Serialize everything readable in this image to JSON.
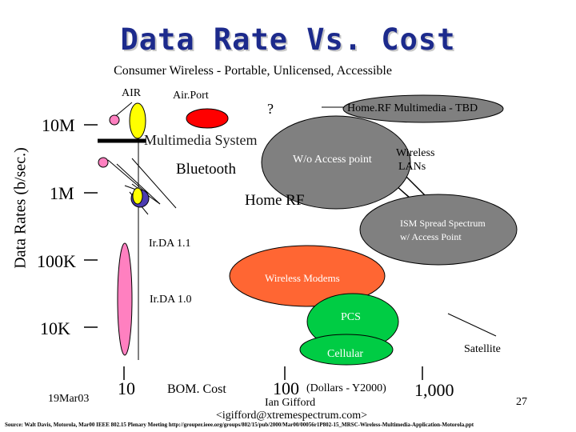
{
  "slide": {
    "title": "Data Rate Vs. Cost",
    "subtitle": "Consumer Wireless - Portable, Unlicensed, Accessible",
    "date": "19Mar03",
    "author": "Ian Gifford",
    "email": "<igifford@xtremespectrum.com>",
    "page_number": "27",
    "source": "Source: Walt Davis, Motorola, Mar00 IEEE 802.15 Plenary Meeting http://grouper.ieee.org/groups/802/15/pub/2000/Mar00/00056r1P802-15_MRSC-Wireless-Multimedia-Application-Motorola.ppt"
  },
  "axes": {
    "y_label": "Data Rates (b/sec.)",
    "y_ticks": [
      "10M",
      "1M",
      "100K",
      "10K"
    ],
    "x_ticks": [
      "10",
      "100",
      "1,000"
    ],
    "x_label": "BOM. Cost",
    "x_unit": "(Dollars - Y2000)"
  },
  "technologies": {
    "air": "AIR",
    "airport": "Air.Port",
    "question": "?",
    "homerf_multimedia": "Home.RF Multimedia - TBD",
    "multimedia_system": "Multimedia System",
    "wo_access_point": "W/o Access point",
    "wireless_lans_1": "Wireless",
    "wireless_lans_2": "LANs",
    "bluetooth": "Bluetooth",
    "home_rf": "Home RF",
    "ism_1": "ISM Spread Spectrum",
    "ism_2": "w/ Access Point",
    "irda_11": "Ir.DA 1.1",
    "wireless_modems": "Wireless Modems",
    "irda_10": "Ir.DA 1.0",
    "pcs": "PCS",
    "satellite": "Satellite",
    "cellular": "Cellular"
  },
  "colors": {
    "title": "#1c2a8c",
    "yellow": "#ffff00",
    "pink": "#ff80c0",
    "red": "#ff0000",
    "gray": "#808080",
    "orange": "#ff6633",
    "green": "#00cc44",
    "purple": "#4b3cb0"
  }
}
